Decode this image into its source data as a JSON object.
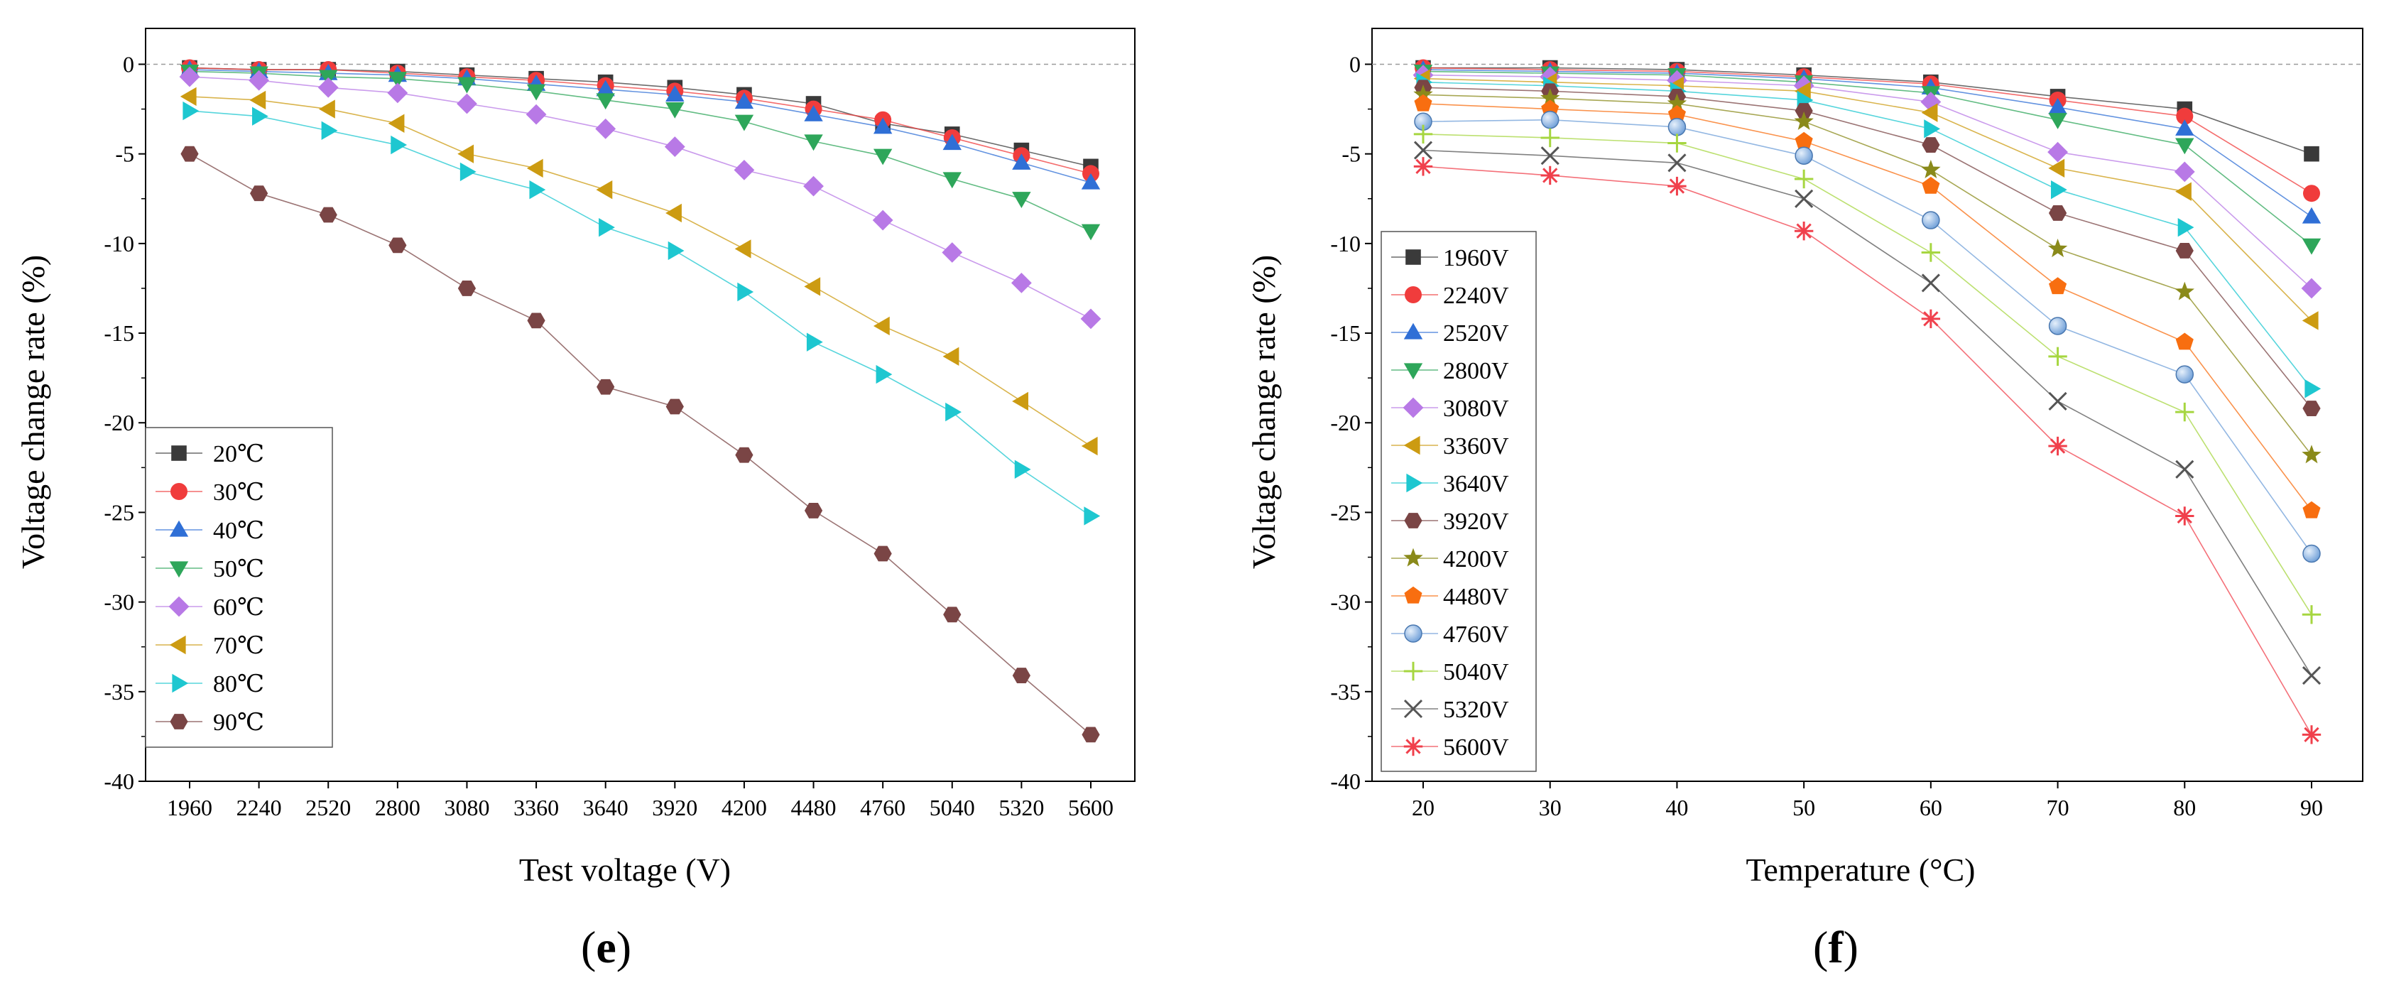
{
  "chart_data": [
    {
      "type": "line",
      "panel_label": {
        "open": "(",
        "letter": "e",
        "close": ")"
      },
      "xlabel": "Test voltage (V)",
      "ylabel": "Voltage change rate (%)",
      "categories": [
        "1960",
        "2240",
        "2520",
        "2800",
        "3080",
        "3360",
        "3640",
        "3920",
        "4200",
        "4480",
        "4760",
        "5040",
        "5320",
        "5600"
      ],
      "ylim": [
        -40,
        2
      ],
      "yticks": [
        "0",
        "-5",
        "-10",
        "-15",
        "-20",
        "-25",
        "-30",
        "-35",
        "-40"
      ],
      "reference_line": 0,
      "grid": false,
      "legend_position": "bottom-left",
      "series": [
        {
          "name": "20℃",
          "marker": "square",
          "color": "#3a3a3a",
          "values": [
            -0.2,
            -0.3,
            -0.3,
            -0.4,
            -0.6,
            -0.8,
            -1.0,
            -1.3,
            -1.7,
            -2.2,
            -3.3,
            -3.9,
            -4.8,
            -5.7
          ]
        },
        {
          "name": "30℃",
          "marker": "circle",
          "color": "#f03c3c",
          "values": [
            -0.2,
            -0.3,
            -0.3,
            -0.5,
            -0.7,
            -0.9,
            -1.2,
            -1.5,
            -1.9,
            -2.5,
            -3.1,
            -4.1,
            -5.1,
            -6.1
          ]
        },
        {
          "name": "40℃",
          "marker": "triangle-up",
          "color": "#2f6fd6",
          "values": [
            -0.3,
            -0.4,
            -0.5,
            -0.6,
            -0.8,
            -1.1,
            -1.4,
            -1.7,
            -2.1,
            -2.8,
            -3.5,
            -4.4,
            -5.5,
            -6.6
          ]
        },
        {
          "name": "50℃",
          "marker": "triangle-down",
          "color": "#2ea65a",
          "values": [
            -0.4,
            -0.5,
            -0.7,
            -0.8,
            -1.1,
            -1.5,
            -2.0,
            -2.5,
            -3.2,
            -4.3,
            -5.1,
            -6.4,
            -7.5,
            -9.3
          ]
        },
        {
          "name": "60℃",
          "marker": "diamond",
          "color": "#b879e6",
          "values": [
            -0.7,
            -0.9,
            -1.3,
            -1.6,
            -2.2,
            -2.8,
            -3.6,
            -4.6,
            -5.9,
            -6.8,
            -8.7,
            -10.5,
            -12.2,
            -14.2
          ]
        },
        {
          "name": "70℃",
          "marker": "triangle-left",
          "color": "#cc9b12",
          "values": [
            -1.8,
            -2.0,
            -2.5,
            -3.3,
            -5.0,
            -5.8,
            -7.0,
            -8.3,
            -10.3,
            -12.4,
            -14.6,
            -16.3,
            -18.8,
            -21.3
          ]
        },
        {
          "name": "80℃",
          "marker": "triangle-right",
          "color": "#1ec7d0",
          "values": [
            -2.6,
            -2.9,
            -3.7,
            -4.5,
            -6.0,
            -7.0,
            -9.1,
            -10.4,
            -12.7,
            -15.5,
            -17.3,
            -19.4,
            -22.6,
            -25.2
          ]
        },
        {
          "name": "90℃",
          "marker": "hexagon",
          "color": "#7a4545",
          "values": [
            -5.0,
            -7.2,
            -8.4,
            -10.1,
            -12.5,
            -14.3,
            -18.0,
            -19.1,
            -21.8,
            -24.9,
            -27.3,
            -30.7,
            -34.1,
            -37.4
          ]
        }
      ]
    },
    {
      "type": "line",
      "panel_label": {
        "open": "(",
        "letter": "f",
        "close": ")"
      },
      "xlabel": "Temperature (°C)",
      "ylabel": "Voltage change rate (%)",
      "categories": [
        "20",
        "30",
        "40",
        "50",
        "60",
        "70",
        "80",
        "90"
      ],
      "ylim": [
        -40,
        2
      ],
      "yticks": [
        "0",
        "-5",
        "-10",
        "-15",
        "-20",
        "-25",
        "-30",
        "-35",
        "-40"
      ],
      "reference_line": 0,
      "grid": false,
      "legend_position": "left",
      "series": [
        {
          "name": "1960V",
          "marker": "square",
          "color": "#3a3a3a",
          "values": [
            -0.2,
            -0.2,
            -0.3,
            -0.6,
            -1.0,
            -1.8,
            -2.5,
            -5.0
          ]
        },
        {
          "name": "2240V",
          "marker": "circle",
          "color": "#f03c3c",
          "values": [
            -0.2,
            -0.3,
            -0.4,
            -0.7,
            -1.1,
            -2.0,
            -2.9,
            -7.2
          ]
        },
        {
          "name": "2520V",
          "marker": "triangle-up",
          "color": "#2f6fd6",
          "values": [
            -0.3,
            -0.4,
            -0.5,
            -0.8,
            -1.3,
            -2.4,
            -3.6,
            -8.5
          ]
        },
        {
          "name": "2800V",
          "marker": "triangle-down",
          "color": "#2ea65a",
          "values": [
            -0.4,
            -0.5,
            -0.6,
            -1.0,
            -1.6,
            -3.1,
            -4.5,
            -10.1
          ]
        },
        {
          "name": "3080V",
          "marker": "diamond",
          "color": "#b879e6",
          "values": [
            -0.6,
            -0.7,
            -0.9,
            -1.2,
            -2.1,
            -4.9,
            -6.0,
            -12.5
          ]
        },
        {
          "name": "3360V",
          "marker": "triangle-left",
          "color": "#cc9b12",
          "values": [
            -0.8,
            -1.0,
            -1.2,
            -1.5,
            -2.7,
            -5.8,
            -7.1,
            -14.3
          ]
        },
        {
          "name": "3640V",
          "marker": "triangle-right",
          "color": "#1ec7d0",
          "values": [
            -1.0,
            -1.2,
            -1.5,
            -2.0,
            -3.6,
            -7.0,
            -9.1,
            -18.1
          ]
        },
        {
          "name": "3920V",
          "marker": "hexagon",
          "color": "#7a4545",
          "values": [
            -1.3,
            -1.5,
            -1.8,
            -2.6,
            -4.5,
            -8.3,
            -10.4,
            -19.2
          ]
        },
        {
          "name": "4200V",
          "marker": "star",
          "color": "#8a8a1a",
          "values": [
            -1.7,
            -1.9,
            -2.2,
            -3.2,
            -5.9,
            -10.3,
            -12.7,
            -21.8
          ]
        },
        {
          "name": "4480V",
          "marker": "pentagon",
          "color": "#f86e10",
          "values": [
            -2.2,
            -2.5,
            -2.8,
            -4.3,
            -6.8,
            -12.4,
            -15.5,
            -24.9
          ]
        },
        {
          "name": "4760V",
          "marker": "sphere",
          "color": "#6f9fd8",
          "values": [
            -3.2,
            -3.1,
            -3.5,
            -5.1,
            -8.7,
            -14.6,
            -17.3,
            -27.3
          ]
        },
        {
          "name": "5040V",
          "marker": "plus",
          "color": "#a6d640",
          "values": [
            -3.9,
            -4.1,
            -4.4,
            -6.4,
            -10.5,
            -16.3,
            -19.4,
            -30.7
          ]
        },
        {
          "name": "5320V",
          "marker": "x",
          "color": "#555555",
          "values": [
            -4.8,
            -5.1,
            -5.5,
            -7.5,
            -12.2,
            -18.8,
            -22.6,
            -34.1
          ]
        },
        {
          "name": "5600V",
          "marker": "asterisk",
          "color": "#f0404c",
          "values": [
            -5.7,
            -6.2,
            -6.8,
            -9.3,
            -14.2,
            -21.3,
            -25.2,
            -37.4
          ]
        }
      ]
    }
  ]
}
